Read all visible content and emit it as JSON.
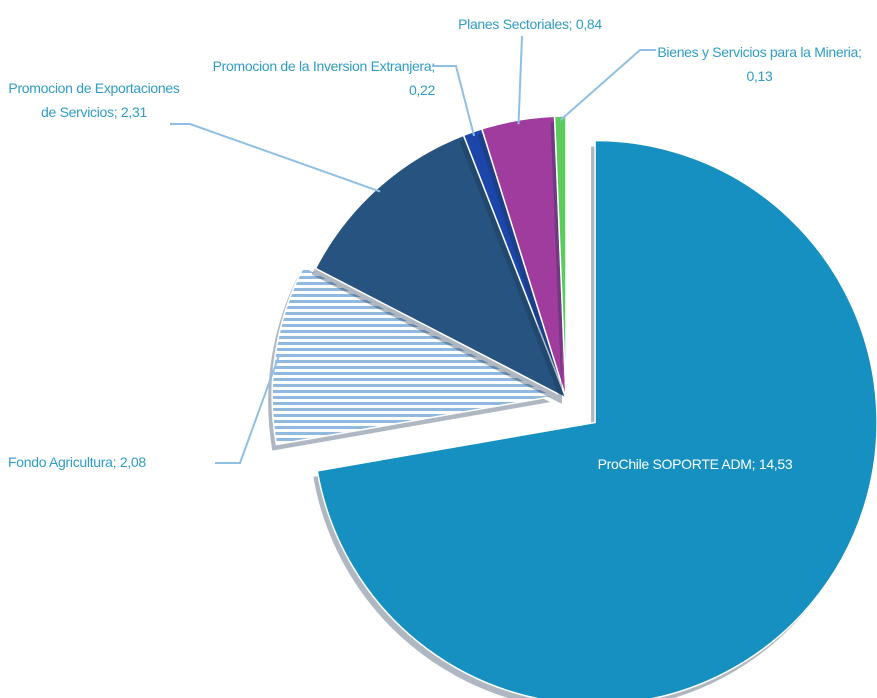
{
  "chart_data": {
    "type": "pie",
    "categories": [
      "ProChile SOPORTE ADM",
      "Fondo Agricultura",
      "Promocion de Exportaciones de Servicios",
      "Promocion de la Inversion Extranjera",
      "Planes Sectoriales",
      "Bienes y Servicios para la Mineria"
    ],
    "values": [
      14.53,
      2.08,
      2.31,
      0.22,
      0.84,
      0.13
    ],
    "value_labels": [
      "14,53",
      "2,08",
      "2,31",
      "0,22",
      "0,84",
      "0,13"
    ],
    "label_separator": "; ",
    "colors": [
      "#1690c0",
      "#8fb9de",
      "#26537f",
      "#1c46aa",
      "#a13c9f",
      "#5ccc5c"
    ],
    "hatched": [
      false,
      true,
      false,
      false,
      false,
      false
    ]
  }
}
